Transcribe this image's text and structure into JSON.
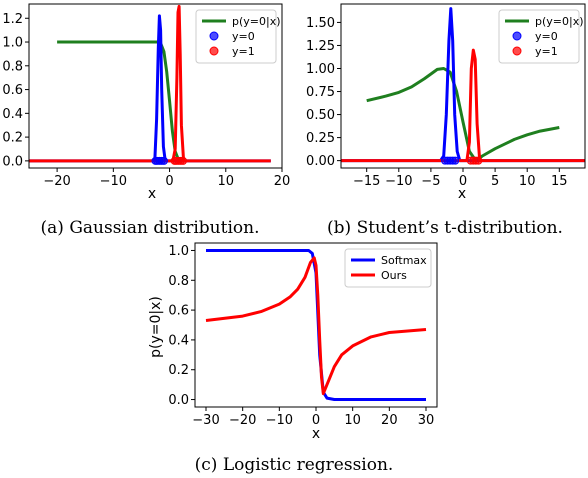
{
  "colors": {
    "green": "#1f7f1f",
    "blue": "#0000ff",
    "red": "#ff0000",
    "axis": "#000000"
  },
  "chart_data": [
    {
      "type": "line",
      "caption": "(a) Gaussian distribution.",
      "xlabel": "x",
      "xlim": [
        -25,
        20
      ],
      "ylim": [
        -0.06,
        1.32
      ],
      "xticks": [
        -20,
        -10,
        0,
        10,
        20
      ],
      "xtick_labels": [
        "−20",
        "−10",
        "0",
        "10",
        "20"
      ],
      "yticks": [
        0.0,
        0.2,
        0.4,
        0.6,
        0.8,
        1.0,
        1.2
      ],
      "ytick_labels": [
        "0.0",
        "0.2",
        "0.4",
        "0.6",
        "0.8",
        "1.0",
        "1.2"
      ],
      "legend": {
        "placement": "top-right",
        "entries": [
          {
            "label": "p(y=0|x)",
            "color": "green",
            "kind": "line"
          },
          {
            "label": "y=0",
            "color": "blue",
            "kind": "marker"
          },
          {
            "label": "y=1",
            "color": "red",
            "kind": "marker"
          }
        ]
      },
      "series": [
        {
          "name": "p(y=0|x)",
          "color": "green",
          "x": [
            -20,
            -10,
            -3,
            -2,
            -1.5,
            -1,
            -0.5,
            0,
            0.5,
            1,
            1.5,
            2
          ],
          "y": [
            1.0,
            1.0,
            1.0,
            1.0,
            0.98,
            0.92,
            0.75,
            0.5,
            0.25,
            0.08,
            0.02,
            0.0
          ]
        },
        {
          "name": "y=0",
          "color": "blue",
          "x": [
            -25,
            -3,
            -2.6,
            -2.3,
            -2.0,
            -1.8,
            -1.6,
            -1.4,
            -1.1,
            -0.8,
            -0.4,
            18
          ],
          "y": [
            0,
            0,
            0.02,
            0.35,
            0.95,
            1.22,
            1.1,
            0.6,
            0.12,
            0.01,
            0,
            0
          ]
        },
        {
          "name": "y=1",
          "color": "red",
          "x": [
            -25,
            0.6,
            1.0,
            1.3,
            1.5,
            1.7,
            1.9,
            2.1,
            2.5,
            18
          ],
          "y": [
            0,
            0,
            0.1,
            0.7,
            1.25,
            1.3,
            0.9,
            0.3,
            0,
            0
          ]
        }
      ],
      "markers": [
        {
          "series": "y=0",
          "x": [
            -2.2,
            -1.8,
            -1.4,
            -2.5,
            -1.0
          ],
          "y": [
            0,
            0,
            0,
            0,
            0
          ]
        },
        {
          "series": "y=1",
          "x": [
            1.2,
            1.6,
            2.0,
            2.4,
            0.9
          ],
          "y": [
            0,
            0,
            0,
            0,
            0
          ]
        }
      ]
    },
    {
      "type": "line",
      "caption": "(b) Student’s t-distribution.",
      "xlabel": "x",
      "xlim": [
        -19,
        19
      ],
      "ylim": [
        -0.08,
        1.7
      ],
      "xticks": [
        -15,
        -10,
        -5,
        0,
        5,
        10,
        15
      ],
      "xtick_labels": [
        "−15",
        "−10",
        "−5",
        "0",
        "5",
        "10",
        "15"
      ],
      "yticks": [
        0.0,
        0.25,
        0.5,
        0.75,
        1.0,
        1.25,
        1.5
      ],
      "ytick_labels": [
        "0.00",
        "0.25",
        "0.50",
        "0.75",
        "1.00",
        "1.25",
        "1.50"
      ],
      "legend": {
        "placement": "top-right",
        "entries": [
          {
            "label": "p(y=0|x)",
            "color": "green",
            "kind": "line"
          },
          {
            "label": "y=0",
            "color": "blue",
            "kind": "marker"
          },
          {
            "label": "y=1",
            "color": "red",
            "kind": "marker"
          }
        ]
      },
      "series": [
        {
          "name": "p(y=0|x)",
          "color": "green",
          "x": [
            -15,
            -12,
            -10,
            -8,
            -6,
            -5,
            -4,
            -3,
            -2,
            -1,
            0,
            1,
            2,
            3,
            5,
            8,
            10,
            12,
            15
          ],
          "y": [
            0.65,
            0.7,
            0.74,
            0.8,
            0.89,
            0.94,
            0.99,
            1.0,
            0.96,
            0.75,
            0.42,
            0.1,
            0.0,
            0.05,
            0.13,
            0.23,
            0.28,
            0.32,
            0.36
          ]
        },
        {
          "name": "y=0",
          "color": "blue",
          "x": [
            -19,
            -3.5,
            -3.0,
            -2.6,
            -2.2,
            -1.9,
            -1.6,
            -1.3,
            -0.9,
            -0.5,
            19
          ],
          "y": [
            0,
            0,
            0.05,
            0.5,
            1.3,
            1.65,
            1.3,
            0.5,
            0.1,
            0,
            0
          ]
        },
        {
          "name": "y=1",
          "color": "red",
          "x": [
            -19,
            0.6,
            1.0,
            1.3,
            1.6,
            1.9,
            2.2,
            2.6,
            19
          ],
          "y": [
            0,
            0,
            0.2,
            1.0,
            1.2,
            1.1,
            0.4,
            0,
            0
          ]
        }
      ],
      "markers": [
        {
          "series": "y=0",
          "x": [
            -2.4,
            -2.0,
            -1.6,
            -2.8,
            -1.2
          ],
          "y": [
            0,
            0,
            0,
            0,
            0
          ]
        },
        {
          "series": "y=1",
          "x": [
            1.2,
            1.6,
            2.0,
            2.4
          ],
          "y": [
            0,
            0,
            0,
            0
          ]
        }
      ]
    },
    {
      "type": "line",
      "caption": "(c) Logistic regression.",
      "xlabel": "x",
      "ylabel": "p(y=0|x)",
      "xlim": [
        -33,
        33
      ],
      "ylim": [
        -0.05,
        1.05
      ],
      "xticks": [
        -30,
        -20,
        -10,
        0,
        10,
        20,
        30
      ],
      "xtick_labels": [
        "−30",
        "−20",
        "−10",
        "0",
        "10",
        "20",
        "30"
      ],
      "yticks": [
        0.0,
        0.2,
        0.4,
        0.6,
        0.8,
        1.0
      ],
      "ytick_labels": [
        "0.0",
        "0.2",
        "0.4",
        "0.6",
        "0.8",
        "1.0"
      ],
      "legend": {
        "placement": "top-right",
        "entries": [
          {
            "label": "Softmax",
            "color": "blue",
            "kind": "line"
          },
          {
            "label": "Ours",
            "color": "red",
            "kind": "line"
          }
        ]
      },
      "series": [
        {
          "name": "Softmax",
          "color": "blue",
          "x": [
            -30,
            -5,
            -2,
            -1,
            0,
            1,
            2,
            3,
            5,
            30
          ],
          "y": [
            1.0,
            1.0,
            1.0,
            0.98,
            0.85,
            0.3,
            0.05,
            0.01,
            0.0,
            0.0
          ]
        },
        {
          "name": "Ours",
          "color": "red",
          "x": [
            -30,
            -20,
            -15,
            -10,
            -7,
            -5,
            -3,
            -1.5,
            -0.5,
            0,
            0.5,
            1,
            1.5,
            2,
            3,
            5,
            7,
            10,
            15,
            20,
            25,
            30
          ],
          "y": [
            0.53,
            0.56,
            0.59,
            0.64,
            0.69,
            0.74,
            0.82,
            0.92,
            0.95,
            0.9,
            0.7,
            0.4,
            0.15,
            0.04,
            0.1,
            0.22,
            0.3,
            0.36,
            0.42,
            0.45,
            0.46,
            0.47
          ]
        }
      ]
    }
  ]
}
